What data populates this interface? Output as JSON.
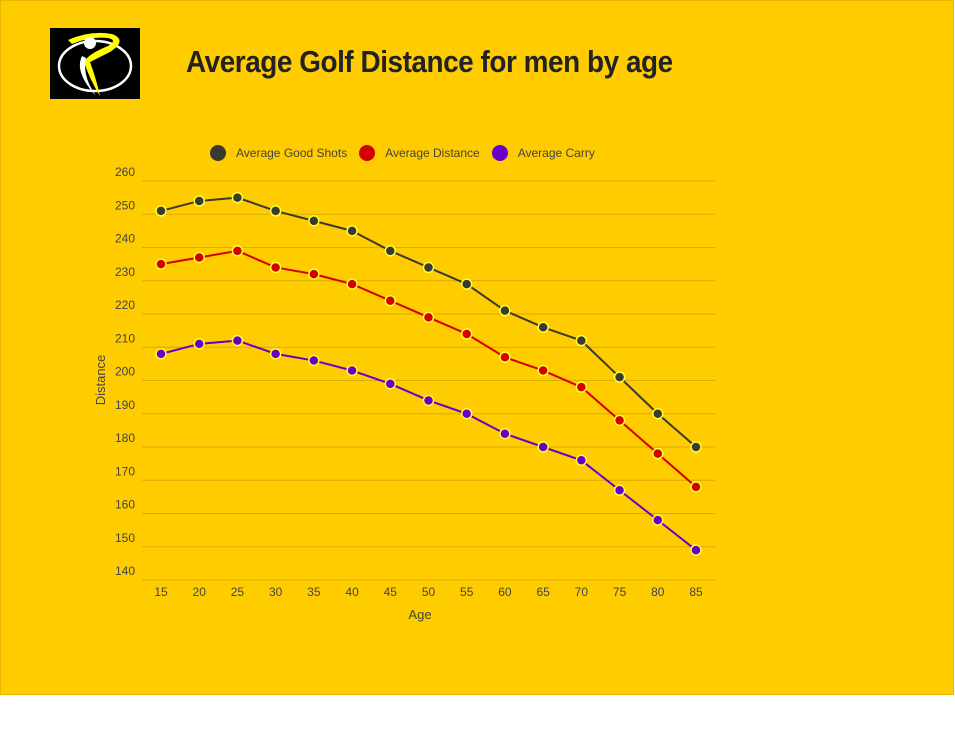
{
  "title": "Average Golf Distance for men by age",
  "logo": {
    "description_icon": "golfer-logo-icon"
  },
  "chart_data": {
    "type": "line",
    "title": "Average Golf Distance for men by age",
    "xlabel": "Age",
    "ylabel": "Distance",
    "ylim": [
      140,
      260
    ],
    "yticks": [
      140,
      150,
      160,
      170,
      180,
      190,
      200,
      210,
      220,
      230,
      240,
      250,
      260
    ],
    "x": [
      15,
      20,
      25,
      30,
      35,
      40,
      45,
      50,
      55,
      60,
      65,
      70,
      75,
      80,
      85
    ],
    "grid": true,
    "legend_position": "top",
    "series": [
      {
        "name": "Average Good Shots",
        "color": "#3a3a30",
        "values": [
          251,
          254,
          255,
          251,
          248,
          245,
          239,
          234,
          229,
          221,
          216,
          212,
          201,
          190,
          180
        ]
      },
      {
        "name": "Average Distance",
        "color": "#d40000",
        "values": [
          235,
          237,
          239,
          234,
          232,
          229,
          224,
          219,
          214,
          207,
          203,
          198,
          188,
          178,
          168
        ]
      },
      {
        "name": "Average Carry",
        "color": "#6a00c8",
        "values": [
          208,
          211,
          212,
          208,
          206,
          203,
          199,
          194,
          190,
          184,
          180,
          176,
          167,
          158,
          149
        ]
      }
    ]
  }
}
